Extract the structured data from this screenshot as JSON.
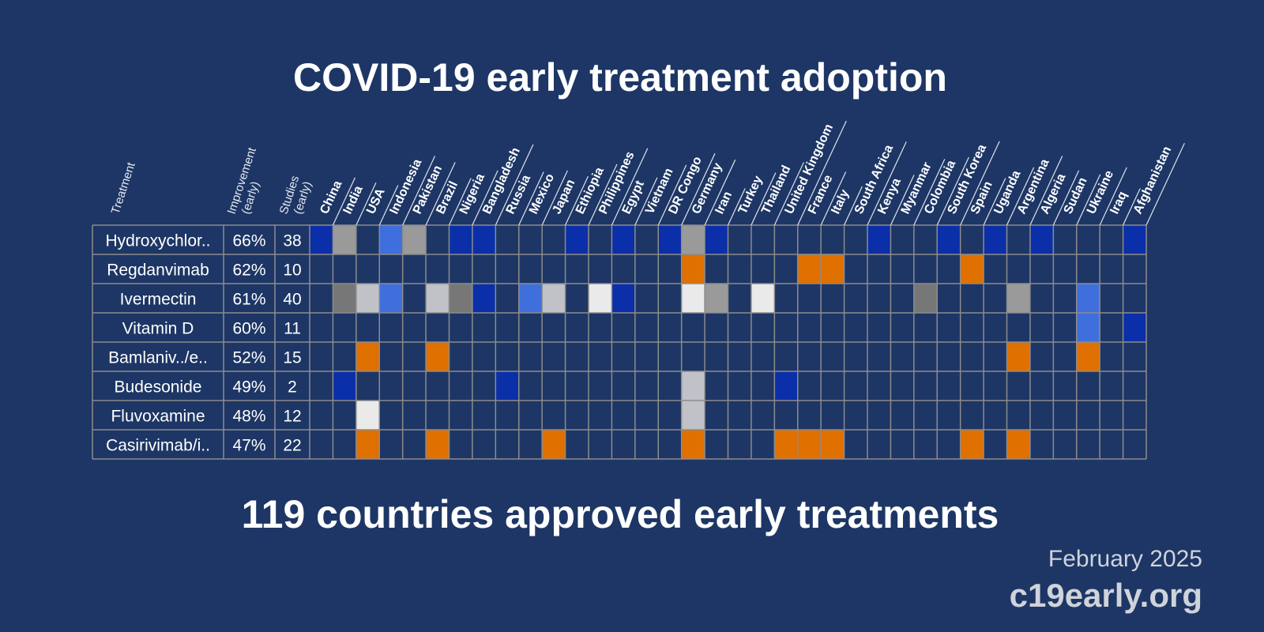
{
  "title": "COVID-19 early treatment adoption",
  "columns": {
    "treatment": [
      "Treatment"
    ],
    "improvement": [
      "Improvement",
      "(early)"
    ],
    "studies": [
      "Studies",
      "(early)"
    ]
  },
  "countries": [
    "China",
    "India",
    "USA",
    "Indonesia",
    "Pakistan",
    "Brazil",
    "Nigeria",
    "Bangladesh",
    "Russia",
    "Mexico",
    "Japan",
    "Ethiopia",
    "Philippines",
    "Egypt",
    "Vietnam",
    "DR Congo",
    "Germany",
    "Iran",
    "Turkey",
    "Thailand",
    "United Kingdom",
    "France",
    "Italy",
    "South Africa",
    "Kenya",
    "Myanmar",
    "Colombia",
    "South Korea",
    "Spain",
    "Uganda",
    "Argentina",
    "Algeria",
    "Sudan",
    "Ukraine",
    "Iraq",
    "Afghanistan"
  ],
  "rows": [
    {
      "treatment": "Hydroxychlor..",
      "improvement": "66%",
      "studies": "38",
      "cells": [
        "#0a2fa8",
        "#9a9a9a",
        null,
        "#3f6fdc",
        "#9a9a9a",
        null,
        "#0a2fa8",
        "#0a2fa8",
        null,
        null,
        null,
        "#0a2fa8",
        null,
        "#0a2fa8",
        null,
        "#0a2fa8",
        "#9a9a9a",
        "#0a2fa8",
        null,
        null,
        null,
        null,
        null,
        null,
        "#0a2fa8",
        null,
        null,
        "#0a2fa8",
        null,
        "#0a2fa8",
        null,
        "#0a2fa8",
        null,
        null,
        null,
        "#0a2fa8"
      ]
    },
    {
      "treatment": "Regdanvimab",
      "improvement": "62%",
      "studies": "10",
      "cells": [
        null,
        null,
        null,
        null,
        null,
        null,
        null,
        null,
        null,
        null,
        null,
        null,
        null,
        null,
        null,
        null,
        "#e07000",
        null,
        null,
        null,
        null,
        "#e07000",
        "#e07000",
        null,
        null,
        null,
        null,
        null,
        "#e07000",
        null,
        null,
        null,
        null,
        null,
        null,
        null
      ]
    },
    {
      "treatment": "Ivermectin",
      "improvement": "61%",
      "studies": "40",
      "cells": [
        null,
        "#777777",
        "#c0c2c8",
        "#3f6fdc",
        null,
        "#c0c2c8",
        "#777777",
        "#0a2fa8",
        null,
        "#3f6fdc",
        "#c0c2c8",
        null,
        "#eaeaea",
        "#0a2fa8",
        null,
        null,
        "#eaeaea",
        "#9a9a9a",
        null,
        "#eaeaea",
        null,
        null,
        null,
        null,
        null,
        null,
        "#777777",
        null,
        null,
        null,
        "#9a9a9a",
        null,
        null,
        "#3f6fdc",
        null,
        null
      ]
    },
    {
      "treatment": "Vitamin D",
      "improvement": "60%",
      "studies": "11",
      "cells": [
        null,
        null,
        null,
        null,
        null,
        null,
        null,
        null,
        null,
        null,
        null,
        null,
        null,
        null,
        null,
        null,
        null,
        null,
        null,
        null,
        null,
        null,
        null,
        null,
        null,
        null,
        null,
        null,
        null,
        null,
        null,
        null,
        null,
        "#3f6fdc",
        null,
        "#0a2fa8"
      ]
    },
    {
      "treatment": "Bamlaniv../e..",
      "improvement": "52%",
      "studies": "15",
      "cells": [
        null,
        null,
        "#e07000",
        null,
        null,
        "#e07000",
        null,
        null,
        null,
        null,
        null,
        null,
        null,
        null,
        null,
        null,
        null,
        null,
        null,
        null,
        null,
        null,
        null,
        null,
        null,
        null,
        null,
        null,
        null,
        null,
        "#e07000",
        null,
        null,
        "#e07000",
        null,
        null
      ]
    },
    {
      "treatment": "Budesonide",
      "improvement": "49%",
      "studies": "2",
      "cells": [
        null,
        "#0a2fa8",
        null,
        null,
        null,
        null,
        null,
        null,
        "#0a2fa8",
        null,
        null,
        null,
        null,
        null,
        null,
        null,
        "#c0c2c8",
        null,
        null,
        null,
        "#0a2fa8",
        null,
        null,
        null,
        null,
        null,
        null,
        null,
        null,
        null,
        null,
        null,
        null,
        null,
        null,
        null
      ]
    },
    {
      "treatment": "Fluvoxamine",
      "improvement": "48%",
      "studies": "12",
      "cells": [
        null,
        null,
        "#eaeaea",
        null,
        null,
        null,
        null,
        null,
        null,
        null,
        null,
        null,
        null,
        null,
        null,
        null,
        "#c0c2c8",
        null,
        null,
        null,
        null,
        null,
        null,
        null,
        null,
        null,
        null,
        null,
        null,
        null,
        null,
        null,
        null,
        null,
        null,
        null
      ]
    },
    {
      "treatment": "Casirivimab/i..",
      "improvement": "47%",
      "studies": "22",
      "cells": [
        null,
        null,
        "#e07000",
        null,
        null,
        "#e07000",
        null,
        null,
        null,
        null,
        "#e07000",
        null,
        null,
        null,
        null,
        null,
        "#e07000",
        null,
        null,
        null,
        "#e07000",
        "#e07000",
        "#e07000",
        null,
        null,
        null,
        null,
        null,
        "#e07000",
        null,
        "#e07000",
        null,
        null,
        null,
        null,
        null
      ]
    }
  ],
  "summary": "119 countries approved early treatments",
  "date": "February 2025",
  "site": "c19early.org"
}
